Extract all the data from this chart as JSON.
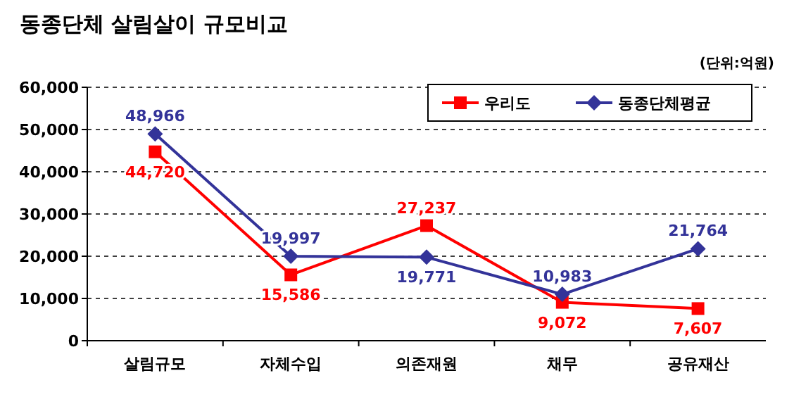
{
  "chart_data": {
    "type": "line",
    "title": "동종단체 살림살이 규모비교",
    "annotations": [
      "(단위:억원)"
    ],
    "categories": [
      "살림규모",
      "자체수입",
      "의존재원",
      "채무",
      "공유재산"
    ],
    "series": [
      {
        "name": "우리도",
        "color": "#ff0000",
        "marker": "square",
        "values": [
          44720,
          15586,
          27237,
          9072,
          7607
        ],
        "value_labels": [
          "44,720",
          "15,586",
          "27,237",
          "9,072",
          "7,607"
        ]
      },
      {
        "name": "동종단체평균",
        "color": "#333399",
        "marker": "diamond",
        "values": [
          48966,
          19997,
          19771,
          10983,
          21764
        ],
        "value_labels": [
          "48,966",
          "19,997",
          "19,771",
          "10,983",
          "21,764"
        ]
      }
    ],
    "ylim": [
      0,
      60000
    ],
    "yticks": [
      {
        "value": 0,
        "label": "0"
      },
      {
        "value": 10000,
        "label": "10,000"
      },
      {
        "value": 20000,
        "label": "20,000"
      },
      {
        "value": 30000,
        "label": "30,000"
      },
      {
        "value": 40000,
        "label": "40,000"
      },
      {
        "value": 50000,
        "label": "50,000"
      },
      {
        "value": 60000,
        "label": "60,000"
      }
    ],
    "grid": "y",
    "legend": "top right",
    "line_style": "solid"
  }
}
